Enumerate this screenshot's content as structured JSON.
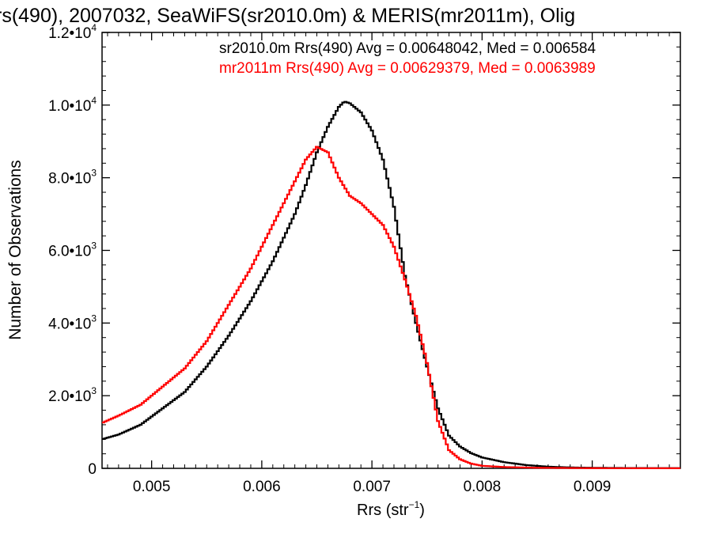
{
  "chart_data": {
    "type": "line",
    "title": "rs(490), 2007032, SeaWiFS(sr2010.0m) & MERIS(mr2011m), Olig",
    "xlabel_main": "Rrs (str",
    "xlabel_sup": "−1",
    "xlabel_end": ")",
    "ylabel": "Number of Observations",
    "xlim": [
      0.00455,
      0.0098
    ],
    "ylim": [
      0,
      12000
    ],
    "x_ticks": [
      {
        "value": 0.005,
        "label": "0.005"
      },
      {
        "value": 0.006,
        "label": "0.006"
      },
      {
        "value": 0.007,
        "label": "0.007"
      },
      {
        "value": 0.008,
        "label": "0.008"
      },
      {
        "value": 0.009,
        "label": "0.009"
      }
    ],
    "y_ticks": [
      {
        "value": 0,
        "mant": "0",
        "exp": ""
      },
      {
        "value": 2000,
        "mant": "2.0•10",
        "exp": "3"
      },
      {
        "value": 4000,
        "mant": "4.0•10",
        "exp": "3"
      },
      {
        "value": 6000,
        "mant": "6.0•10",
        "exp": "3"
      },
      {
        "value": 8000,
        "mant": "8.0•10",
        "exp": "3"
      },
      {
        "value": 10000,
        "mant": "1.0•10",
        "exp": "4"
      },
      {
        "value": 12000,
        "mant": "1.2•10",
        "exp": "4"
      }
    ],
    "series": [
      {
        "name": "sr2010.0m",
        "color": "#000000",
        "annotation": "sr2010.0m Rrs(490) Avg = 0.00648042, Med = 0.006584",
        "points": [
          [
            0.00455,
            800
          ],
          [
            0.0047,
            930
          ],
          [
            0.0049,
            1200
          ],
          [
            0.0051,
            1650
          ],
          [
            0.0053,
            2100
          ],
          [
            0.0055,
            2800
          ],
          [
            0.0057,
            3650
          ],
          [
            0.0059,
            4600
          ],
          [
            0.0061,
            5700
          ],
          [
            0.0063,
            7000
          ],
          [
            0.0064,
            7800
          ],
          [
            0.0065,
            8700
          ],
          [
            0.0066,
            9400
          ],
          [
            0.0067,
            9950
          ],
          [
            0.00675,
            10100
          ],
          [
            0.0068,
            10050
          ],
          [
            0.0069,
            9800
          ],
          [
            0.007,
            9300
          ],
          [
            0.0071,
            8500
          ],
          [
            0.0072,
            7200
          ],
          [
            0.0073,
            5300
          ],
          [
            0.0074,
            4000
          ],
          [
            0.0075,
            2800
          ],
          [
            0.0076,
            1650
          ],
          [
            0.0077,
            900
          ],
          [
            0.0078,
            600
          ],
          [
            0.0079,
            420
          ],
          [
            0.008,
            300
          ],
          [
            0.0082,
            170
          ],
          [
            0.0084,
            90
          ],
          [
            0.0086,
            45
          ],
          [
            0.0088,
            25
          ],
          [
            0.009,
            15
          ],
          [
            0.0094,
            8
          ],
          [
            0.0098,
            5
          ]
        ]
      },
      {
        "name": "mr2011m",
        "color": "#ff0000",
        "annotation": "mr2011m Rrs(490) Avg = 0.00629379, Med = 0.0063989",
        "points": [
          [
            0.00455,
            1250
          ],
          [
            0.0047,
            1450
          ],
          [
            0.0049,
            1750
          ],
          [
            0.0051,
            2250
          ],
          [
            0.0053,
            2750
          ],
          [
            0.0055,
            3500
          ],
          [
            0.0057,
            4500
          ],
          [
            0.0059,
            5500
          ],
          [
            0.0061,
            6700
          ],
          [
            0.0063,
            7900
          ],
          [
            0.0064,
            8500
          ],
          [
            0.0065,
            8850
          ],
          [
            0.0066,
            8700
          ],
          [
            0.0067,
            8000
          ],
          [
            0.0068,
            7500
          ],
          [
            0.0069,
            7300
          ],
          [
            0.007,
            7000
          ],
          [
            0.0071,
            6700
          ],
          [
            0.0072,
            6100
          ],
          [
            0.0073,
            5200
          ],
          [
            0.0074,
            4200
          ],
          [
            0.0075,
            2900
          ],
          [
            0.0076,
            1300
          ],
          [
            0.0077,
            500
          ],
          [
            0.0078,
            250
          ],
          [
            0.0079,
            130
          ],
          [
            0.008,
            70
          ],
          [
            0.0082,
            35
          ],
          [
            0.0085,
            15
          ],
          [
            0.009,
            5
          ],
          [
            0.0098,
            2
          ]
        ]
      }
    ]
  }
}
